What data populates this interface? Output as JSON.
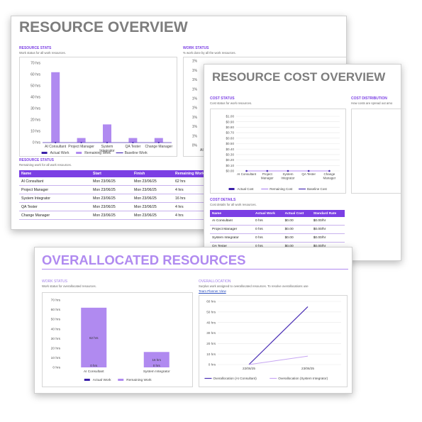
{
  "card1": {
    "title": "RESOURCE OVERVIEW",
    "stats": {
      "heading": "RESOURCE STATS",
      "subtitle": "Work status for all work resources."
    },
    "work_status": {
      "heading": "WORK STATUS",
      "subtitle": "% work done by all the work resources."
    },
    "resource_status": {
      "heading": "RESOURCE STATUS",
      "subtitle": "Remaining work for all work resources."
    },
    "table": {
      "headers": [
        "Name",
        "Start",
        "Finish",
        "Remaining Work"
      ],
      "rows": [
        [
          "AI Consultant",
          "Mon 23/06/25",
          "Mon 23/06/25",
          "62 hrs"
        ],
        [
          "Project Manager",
          "Mon 23/06/25",
          "Mon 23/06/25",
          "4 hrs"
        ],
        [
          "System Integrator",
          "Mon 23/06/25",
          "Mon 23/06/25",
          "16 hrs"
        ],
        [
          "QA Tester",
          "Mon 23/06/25",
          "Mon 23/06/25",
          "4 hrs"
        ],
        [
          "Change Manager",
          "Mon 23/06/25",
          "Mon 23/06/25",
          "4 hrs"
        ]
      ]
    }
  },
  "card2": {
    "title": "RESOURCE COST OVERVIEW",
    "cost_status": {
      "heading": "COST STATUS",
      "subtitle": "Cost status for work resources."
    },
    "cost_distribution": {
      "heading": "COST DISTRIBUTION",
      "subtitle": "How costs are spread out amo"
    },
    "cost_details": {
      "heading": "COST DETAILS",
      "subtitle": "Cost details for all work resources."
    },
    "table": {
      "headers": [
        "Name",
        "Actual Work",
        "Actual Cost",
        "Standard Rate"
      ],
      "rows": [
        [
          "AI Consultant",
          "0 hrs",
          "$0.00",
          "$0.00/hr"
        ],
        [
          "Project Manager",
          "0 hrs",
          "$0.00",
          "$0.00/hr"
        ],
        [
          "System Integrator",
          "0 hrs",
          "$0.00",
          "$0.00/hr"
        ],
        [
          "QA Tester",
          "0 hrs",
          "$0.00",
          "$0.00/hr"
        ]
      ]
    }
  },
  "card3": {
    "title": "OVERALLOCATED RESOURCES",
    "work_status": {
      "heading": "WORK STATUS",
      "subtitle": "Work status for overallocated resources."
    },
    "overallocation": {
      "heading": "OVERALLOCATION",
      "subtitle": "Surplus work assigned to overallocated resources. To resolve overallocations use",
      "link": "Team Planner View"
    }
  },
  "colors": {
    "accent": "#7b3fe4",
    "bar": "#b08af0",
    "dark_line": "#4b2fb5",
    "light_line": "#c7a6f2"
  },
  "chart_data": [
    {
      "id": "resource-stats",
      "type": "bar",
      "categories": [
        "AI Consultant",
        "Project Manager",
        "System\nIntegrator",
        "QA Tester",
        "Change Manager"
      ],
      "series": [
        {
          "name": "Actual Work",
          "values": [
            0,
            0,
            0,
            0,
            0
          ]
        },
        {
          "name": "Remaining Work",
          "values": [
            62,
            4,
            16,
            4,
            4
          ]
        },
        {
          "name": "Baseline Work",
          "values": [
            0,
            0,
            0,
            0,
            0
          ]
        }
      ],
      "yticks": [
        "0 hrs",
        "10 hrs",
        "20 hrs",
        "30 hrs",
        "40 hrs",
        "50 hrs",
        "60 hrs",
        "70 hrs"
      ],
      "ylim": [
        0,
        70
      ],
      "legend": "bottom"
    },
    {
      "id": "work-status",
      "type": "bar",
      "yticks": [
        "0%",
        "1%",
        "1%",
        "1%",
        "1%",
        "1%",
        "1%",
        "1%",
        "1%",
        "1%"
      ],
      "categories": [
        "AI C"
      ],
      "note": "partially hidden"
    },
    {
      "id": "cost-status",
      "type": "line",
      "categories": [
        "AI Consultant",
        "Project\nManager",
        "System\nIntegrator",
        "QA Tester",
        "Change\nManager"
      ],
      "series": [
        {
          "name": "Actual Cost",
          "values": [
            0,
            0,
            0,
            0,
            0
          ]
        },
        {
          "name": "Remaining Cost",
          "values": [
            0,
            0,
            0,
            0,
            0
          ]
        },
        {
          "name": "Baseline Cost",
          "values": [
            0,
            0,
            0,
            0,
            0
          ]
        }
      ],
      "yticks": [
        "$0.00",
        "$0.10",
        "$0.20",
        "$0.30",
        "$0.40",
        "$0.50",
        "$0.60",
        "$0.70",
        "$0.80",
        "$0.90",
        "$1.00"
      ],
      "ylim": [
        0,
        1
      ],
      "legend": "bottom"
    },
    {
      "id": "overallocated-work",
      "type": "bar",
      "categories": [
        "AI Consultant",
        "System Integrator"
      ],
      "series": [
        {
          "name": "Actual Work",
          "values": [
            0,
            0
          ],
          "labels": [
            "0 hrs",
            "0 hrs"
          ]
        },
        {
          "name": "Remaining Work",
          "values": [
            62,
            16
          ],
          "labels": [
            "62 hrs",
            "16 hrs"
          ]
        }
      ],
      "yticks": [
        "0 hrs",
        "10 hrs",
        "20 hrs",
        "30 hrs",
        "40 hrs",
        "50 hrs",
        "60 hrs",
        "70 hrs"
      ],
      "ylim": [
        0,
        70
      ],
      "legend": "bottom"
    },
    {
      "id": "overallocation",
      "type": "line",
      "x": [
        "22/06/25",
        "23/06/25"
      ],
      "series": [
        {
          "name": "Overallocation (AI Consultant)",
          "values": [
            0,
            55
          ]
        },
        {
          "name": "Overallocation (System Integrator)",
          "values": [
            0,
            8
          ]
        }
      ],
      "yticks": [
        "0 hrs",
        "10 hrs",
        "20 hrs",
        "30 hrs",
        "40 hrs",
        "50 hrs",
        "60 hrs"
      ],
      "ylim": [
        0,
        60
      ],
      "legend": "bottom"
    }
  ]
}
